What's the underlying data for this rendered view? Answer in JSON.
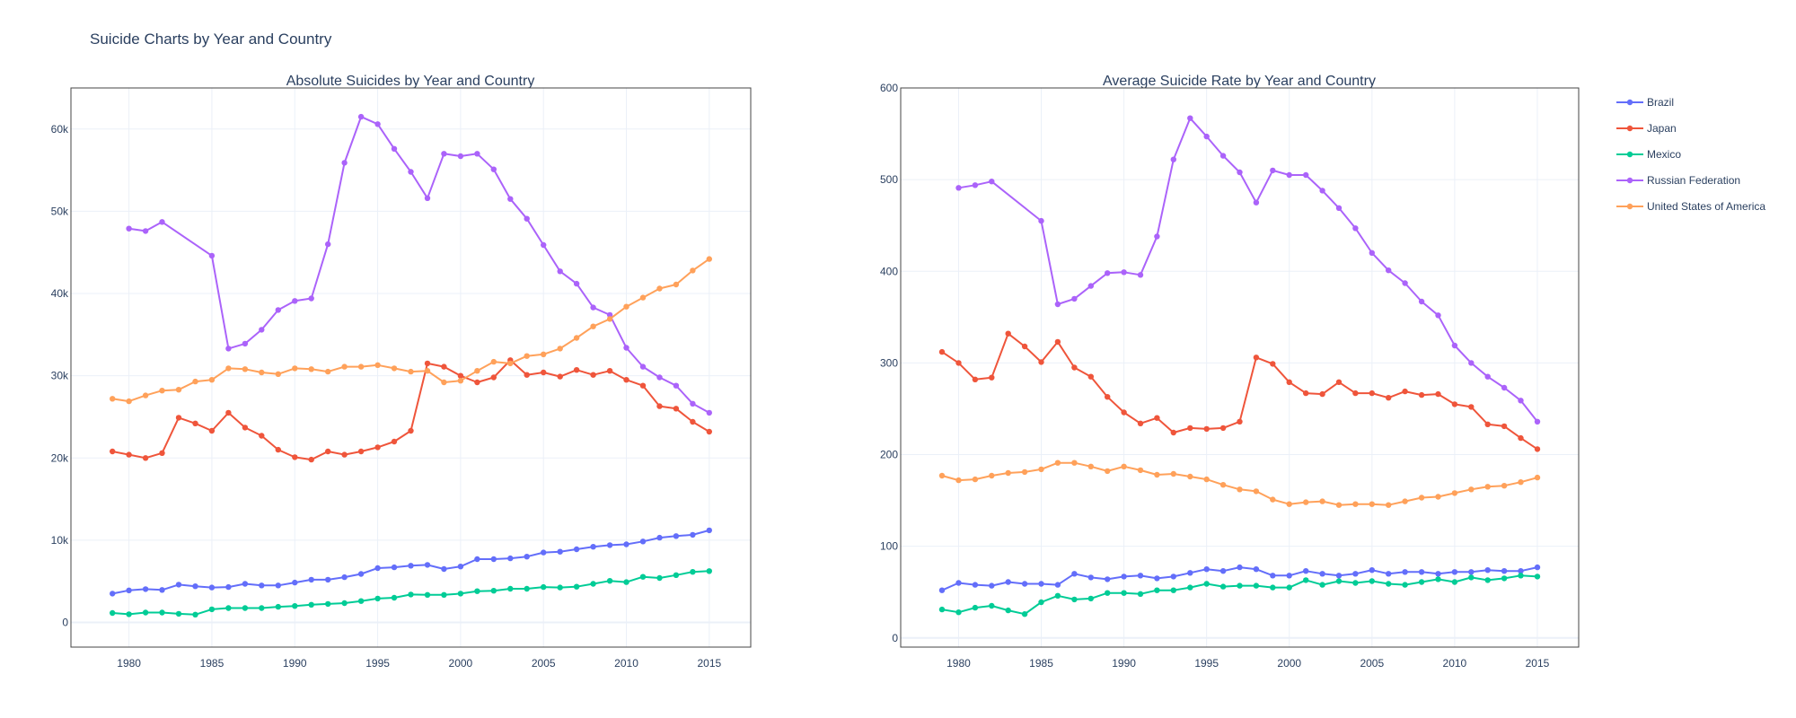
{
  "figure_title": "Suicide Charts by Year and Country",
  "chart_data": [
    {
      "type": "line",
      "title": "Absolute Suicides by Year and Country",
      "xlabel": "",
      "ylabel": "",
      "xlim": [
        1976.5,
        2017.5
      ],
      "ylim": [
        -3000,
        65000
      ],
      "xticks": [
        1980,
        1985,
        1990,
        1995,
        2000,
        2005,
        2010,
        2015
      ],
      "xtick_labels": [
        "1980",
        "1985",
        "1990",
        "1995",
        "2000",
        "2005",
        "2010",
        "2015"
      ],
      "yticks": [
        0,
        10000,
        20000,
        30000,
        40000,
        50000,
        60000
      ],
      "ytick_labels": [
        "0",
        "10k",
        "20k",
        "30k",
        "40k",
        "50k",
        "60k"
      ],
      "grid": true,
      "series": [
        {
          "name": "Brazil",
          "color": "#636efa",
          "x": [
            1979,
            1980,
            1981,
            1982,
            1983,
            1984,
            1985,
            1986,
            1987,
            1988,
            1989,
            1990,
            1991,
            1992,
            1993,
            1994,
            1995,
            1996,
            1997,
            1998,
            1999,
            2000,
            2001,
            2002,
            2003,
            2004,
            2005,
            2006,
            2007,
            2008,
            2009,
            2010,
            2011,
            2012,
            2013,
            2014,
            2015
          ],
          "y": [
            3500,
            3900,
            4050,
            3950,
            4600,
            4400,
            4250,
            4300,
            4700,
            4500,
            4500,
            4850,
            5200,
            5200,
            5500,
            5900,
            6600,
            6700,
            6900,
            7000,
            6500,
            6800,
            7700,
            7700,
            7800,
            8000,
            8500,
            8600,
            8900,
            9200,
            9400,
            9500,
            9850,
            10300,
            10500,
            10650,
            11200
          ]
        },
        {
          "name": "Japan",
          "color": "#ef553b",
          "x": [
            1979,
            1980,
            1981,
            1982,
            1983,
            1984,
            1985,
            1986,
            1987,
            1988,
            1989,
            1990,
            1991,
            1992,
            1993,
            1994,
            1995,
            1996,
            1997,
            1998,
            1999,
            2000,
            2001,
            2002,
            2003,
            2004,
            2005,
            2006,
            2007,
            2008,
            2009,
            2010,
            2011,
            2012,
            2013,
            2014,
            2015
          ],
          "y": [
            20800,
            20400,
            20000,
            20600,
            24900,
            24200,
            23300,
            25500,
            23700,
            22700,
            21000,
            20100,
            19800,
            20800,
            20400,
            20800,
            21300,
            22000,
            23300,
            31500,
            31100,
            30000,
            29200,
            29800,
            31900,
            30100,
            30400,
            29900,
            30700,
            30100,
            30600,
            29500,
            28800,
            26300,
            26000,
            24400,
            23200
          ]
        },
        {
          "name": "Mexico",
          "color": "#00cc96",
          "x": [
            1979,
            1980,
            1981,
            1982,
            1983,
            1984,
            1985,
            1986,
            1987,
            1988,
            1989,
            1990,
            1991,
            1992,
            1993,
            1994,
            1995,
            1996,
            1997,
            1998,
            1999,
            2000,
            2001,
            2002,
            2003,
            2004,
            2005,
            2006,
            2007,
            2008,
            2009,
            2010,
            2011,
            2012,
            2013,
            2014,
            2015
          ],
          "y": [
            1150,
            1000,
            1200,
            1200,
            1050,
            950,
            1600,
            1750,
            1750,
            1750,
            1900,
            2000,
            2150,
            2250,
            2350,
            2600,
            2900,
            3000,
            3400,
            3350,
            3350,
            3500,
            3800,
            3850,
            4100,
            4100,
            4300,
            4250,
            4350,
            4700,
            5050,
            4900,
            5550,
            5400,
            5750,
            6150,
            6250
          ]
        },
        {
          "name": "Russian Federation",
          "color": "#ab63fa",
          "x": [
            1980,
            1981,
            1982,
            1985,
            1986,
            1987,
            1988,
            1989,
            1990,
            1991,
            1992,
            1993,
            1994,
            1995,
            1996,
            1997,
            1998,
            1999,
            2000,
            2001,
            2002,
            2003,
            2004,
            2005,
            2006,
            2007,
            2008,
            2009,
            2010,
            2011,
            2012,
            2013,
            2014,
            2015
          ],
          "y": [
            47900,
            47600,
            48700,
            44600,
            33300,
            33900,
            35600,
            38000,
            39100,
            39400,
            46000,
            55900,
            61500,
            60600,
            57600,
            54800,
            51600,
            57000,
            56700,
            57000,
            55100,
            51500,
            49100,
            45900,
            42700,
            41200,
            38300,
            37400,
            33400,
            31100,
            29800,
            28800,
            26600,
            25500
          ]
        },
        {
          "name": "United States of America",
          "color": "#ffa15a",
          "x": [
            1979,
            1980,
            1981,
            1982,
            1983,
            1984,
            1985,
            1986,
            1987,
            1988,
            1989,
            1990,
            1991,
            1992,
            1993,
            1994,
            1995,
            1996,
            1997,
            1998,
            1999,
            2000,
            2001,
            2002,
            2003,
            2004,
            2005,
            2006,
            2007,
            2008,
            2009,
            2010,
            2011,
            2012,
            2013,
            2014,
            2015
          ],
          "y": [
            27200,
            26900,
            27600,
            28200,
            28300,
            29300,
            29500,
            30900,
            30800,
            30400,
            30200,
            30900,
            30800,
            30500,
            31100,
            31100,
            31300,
            30900,
            30500,
            30600,
            29200,
            29400,
            30600,
            31700,
            31500,
            32400,
            32600,
            33300,
            34600,
            36000,
            36900,
            38400,
            39500,
            40600,
            41100,
            42800,
            44200
          ]
        }
      ]
    },
    {
      "type": "line",
      "title": "Average Suicide Rate by Year and Country",
      "xlabel": "",
      "ylabel": "",
      "xlim": [
        1976.5,
        2017.5
      ],
      "ylim": [
        -10,
        600
      ],
      "xticks": [
        1980,
        1985,
        1990,
        1995,
        2000,
        2005,
        2010,
        2015
      ],
      "xtick_labels": [
        "1980",
        "1985",
        "1990",
        "1995",
        "2000",
        "2005",
        "2010",
        "2015"
      ],
      "yticks": [
        0,
        100,
        200,
        300,
        400,
        500,
        600
      ],
      "ytick_labels": [
        "0",
        "100",
        "200",
        "300",
        "400",
        "500",
        "600"
      ],
      "grid": true,
      "series": [
        {
          "name": "Brazil",
          "color": "#636efa",
          "x": [
            1979,
            1980,
            1981,
            1982,
            1983,
            1984,
            1985,
            1986,
            1987,
            1988,
            1989,
            1990,
            1991,
            1992,
            1993,
            1994,
            1995,
            1996,
            1997,
            1998,
            1999,
            2000,
            2001,
            2002,
            2003,
            2004,
            2005,
            2006,
            2007,
            2008,
            2009,
            2010,
            2011,
            2012,
            2013,
            2014,
            2015
          ],
          "y": [
            52,
            60,
            58,
            57,
            61,
            59,
            59,
            58,
            70,
            66,
            64,
            67,
            68,
            65,
            67,
            71,
            75,
            73,
            77,
            75,
            68,
            68,
            73,
            70,
            68,
            70,
            74,
            70,
            72,
            72,
            70,
            72,
            72,
            74,
            73,
            73,
            77
          ]
        },
        {
          "name": "Japan",
          "color": "#ef553b",
          "x": [
            1979,
            1980,
            1981,
            1982,
            1983,
            1984,
            1985,
            1986,
            1987,
            1988,
            1989,
            1990,
            1991,
            1992,
            1993,
            1994,
            1995,
            1996,
            1997,
            1998,
            1999,
            2000,
            2001,
            2002,
            2003,
            2004,
            2005,
            2006,
            2007,
            2008,
            2009,
            2010,
            2011,
            2012,
            2013,
            2014,
            2015
          ],
          "y": [
            312,
            300,
            282,
            284,
            332,
            318,
            301,
            323,
            295,
            285,
            263,
            246,
            234,
            240,
            224,
            229,
            228,
            229,
            236,
            306,
            299,
            279,
            267,
            266,
            279,
            267,
            267,
            262,
            269,
            265,
            266,
            255,
            252,
            233,
            231,
            218,
            206
          ]
        },
        {
          "name": "Mexico",
          "color": "#00cc96",
          "x": [
            1979,
            1980,
            1981,
            1982,
            1983,
            1984,
            1985,
            1986,
            1987,
            1988,
            1989,
            1990,
            1991,
            1992,
            1993,
            1994,
            1995,
            1996,
            1997,
            1998,
            1999,
            2000,
            2001,
            2002,
            2003,
            2004,
            2005,
            2006,
            2007,
            2008,
            2009,
            2010,
            2011,
            2012,
            2013,
            2014,
            2015
          ],
          "y": [
            31,
            28,
            33,
            35,
            30,
            26,
            39,
            46,
            42,
            43,
            49,
            49,
            48,
            52,
            52,
            55,
            59,
            56,
            57,
            57,
            55,
            55,
            63,
            58,
            62,
            60,
            62,
            59,
            58,
            61,
            64,
            61,
            66,
            63,
            65,
            68,
            67
          ]
        },
        {
          "name": "Russian Federation",
          "color": "#ab63fa",
          "x": [
            1980,
            1981,
            1982,
            1985,
            1986,
            1987,
            1988,
            1989,
            1990,
            1991,
            1992,
            1993,
            1994,
            1995,
            1996,
            1997,
            1998,
            1999,
            2000,
            2001,
            2002,
            2003,
            2004,
            2005,
            2006,
            2007,
            2008,
            2009,
            2010,
            2011,
            2012,
            2013,
            2014,
            2015
          ],
          "y": [
            491,
            494,
            498,
            455,
            364,
            370,
            384,
            398,
            399,
            396,
            438,
            522,
            567,
            547,
            526,
            508,
            475,
            510,
            505,
            505,
            488,
            469,
            447,
            420,
            401,
            387,
            367,
            352,
            319,
            300,
            285,
            273,
            259,
            236
          ]
        },
        {
          "name": "United States of America",
          "color": "#ffa15a",
          "x": [
            1979,
            1980,
            1981,
            1982,
            1983,
            1984,
            1985,
            1986,
            1987,
            1988,
            1989,
            1990,
            1991,
            1992,
            1993,
            1994,
            1995,
            1996,
            1997,
            1998,
            1999,
            2000,
            2001,
            2002,
            2003,
            2004,
            2005,
            2006,
            2007,
            2008,
            2009,
            2010,
            2011,
            2012,
            2013,
            2014,
            2015
          ],
          "y": [
            177,
            172,
            173,
            177,
            180,
            181,
            184,
            191,
            191,
            187,
            182,
            187,
            183,
            178,
            179,
            176,
            173,
            167,
            162,
            160,
            151,
            146,
            148,
            149,
            145,
            146,
            146,
            145,
            149,
            153,
            154,
            158,
            162,
            165,
            166,
            170,
            175
          ]
        }
      ]
    }
  ],
  "legend": {
    "placement": "right",
    "items": [
      {
        "label": "Brazil",
        "color": "#636efa"
      },
      {
        "label": "Japan",
        "color": "#ef553b"
      },
      {
        "label": "Mexico",
        "color": "#00cc96"
      },
      {
        "label": "Russian Federation",
        "color": "#ab63fa"
      },
      {
        "label": "United States of America",
        "color": "#ffa15a"
      }
    ]
  }
}
